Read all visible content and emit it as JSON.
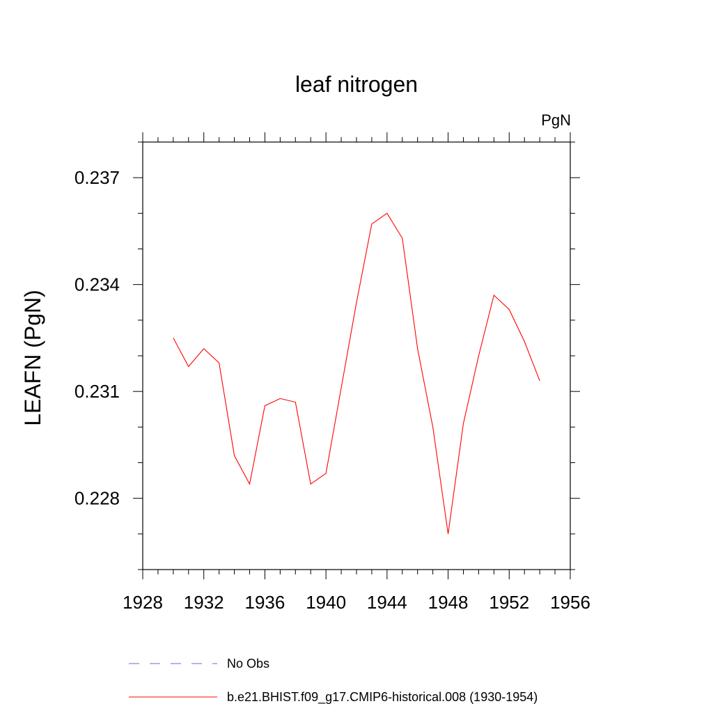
{
  "chart_data": {
    "type": "line",
    "title": "leaf nitrogen",
    "units_label": "PgN",
    "ylabel": "LEAFN  (PgN)",
    "xlabel": "",
    "xlim": [
      1928,
      1956
    ],
    "ylim": [
      0.226,
      0.238
    ],
    "x_major_ticks": [
      1928,
      1932,
      1936,
      1940,
      1944,
      1948,
      1952,
      1956
    ],
    "x_minor_step": 1,
    "y_major_ticks": [
      0.228,
      0.231,
      0.234,
      0.237
    ],
    "y_tick_labels": [
      "0.228",
      "0.231",
      "0.234",
      "0.237"
    ],
    "y_minor_step": 0.001,
    "grid": false,
    "legend_position": "bottom",
    "series": [
      {
        "name": "b.e21.BHIST.f09_g17.CMIP6-historical.008 (1930-1954)",
        "color": "#ff0000",
        "style": "solid",
        "x": [
          1930,
          1931,
          1932,
          1933,
          1934,
          1935,
          1936,
          1937,
          1938,
          1939,
          1940,
          1941,
          1942,
          1943,
          1944,
          1945,
          1946,
          1947,
          1948,
          1949,
          1950,
          1951,
          1952,
          1953,
          1954
        ],
        "y": [
          0.2325,
          0.2317,
          0.2322,
          0.2318,
          0.2292,
          0.2284,
          0.2306,
          0.2308,
          0.2307,
          0.2284,
          0.2287,
          0.2311,
          0.2335,
          0.2357,
          0.236,
          0.2353,
          0.2322,
          0.23,
          0.227,
          0.2301,
          0.232,
          0.2337,
          0.2333,
          0.2324,
          0.2313
        ]
      }
    ],
    "legend": [
      {
        "label": "No Obs",
        "color": "#6a6acd",
        "style": "dashed"
      },
      {
        "label": "b.e21.BHIST.f09_g17.CMIP6-historical.008 (1930-1954)",
        "color": "#ff0000",
        "style": "solid"
      }
    ]
  }
}
